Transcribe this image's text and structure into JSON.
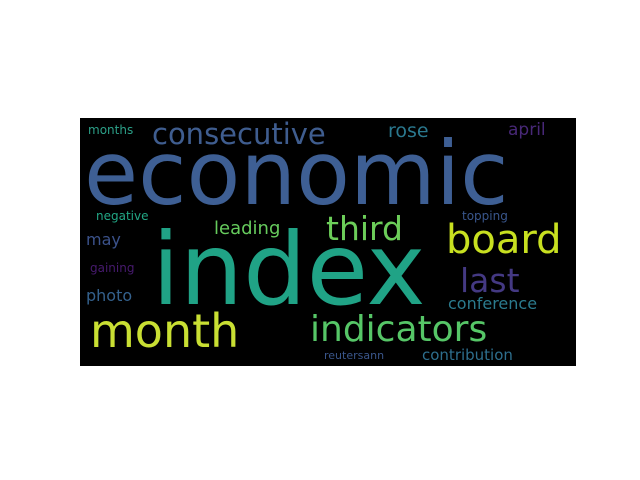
{
  "wordcloud": {
    "words": [
      {
        "text": "economic",
        "color": "#3e5f94"
      },
      {
        "text": "index",
        "color": "#20a386"
      },
      {
        "text": "month",
        "color": "#c9df33"
      },
      {
        "text": "indicators",
        "color": "#56c667"
      },
      {
        "text": "board",
        "color": "#c8e020"
      },
      {
        "text": "consecutive",
        "color": "#3f5d8f"
      },
      {
        "text": "third",
        "color": "#6cce59"
      },
      {
        "text": "last",
        "color": "#443983"
      },
      {
        "text": "leading",
        "color": "#66cb5d"
      },
      {
        "text": "rose",
        "color": "#2a788e"
      },
      {
        "text": "april",
        "color": "#482878"
      },
      {
        "text": "may",
        "color": "#3b528b"
      },
      {
        "text": "photo",
        "color": "#34618d"
      },
      {
        "text": "conference",
        "color": "#2b7b8e"
      },
      {
        "text": "contribution",
        "color": "#2e6f8e"
      },
      {
        "text": "months",
        "color": "#2ca088"
      },
      {
        "text": "negative",
        "color": "#22a785"
      },
      {
        "text": "topping",
        "color": "#39568c"
      },
      {
        "text": "gaining",
        "color": "#471a6e"
      },
      {
        "text": "reutersann",
        "color": "#3a568b"
      }
    ]
  }
}
